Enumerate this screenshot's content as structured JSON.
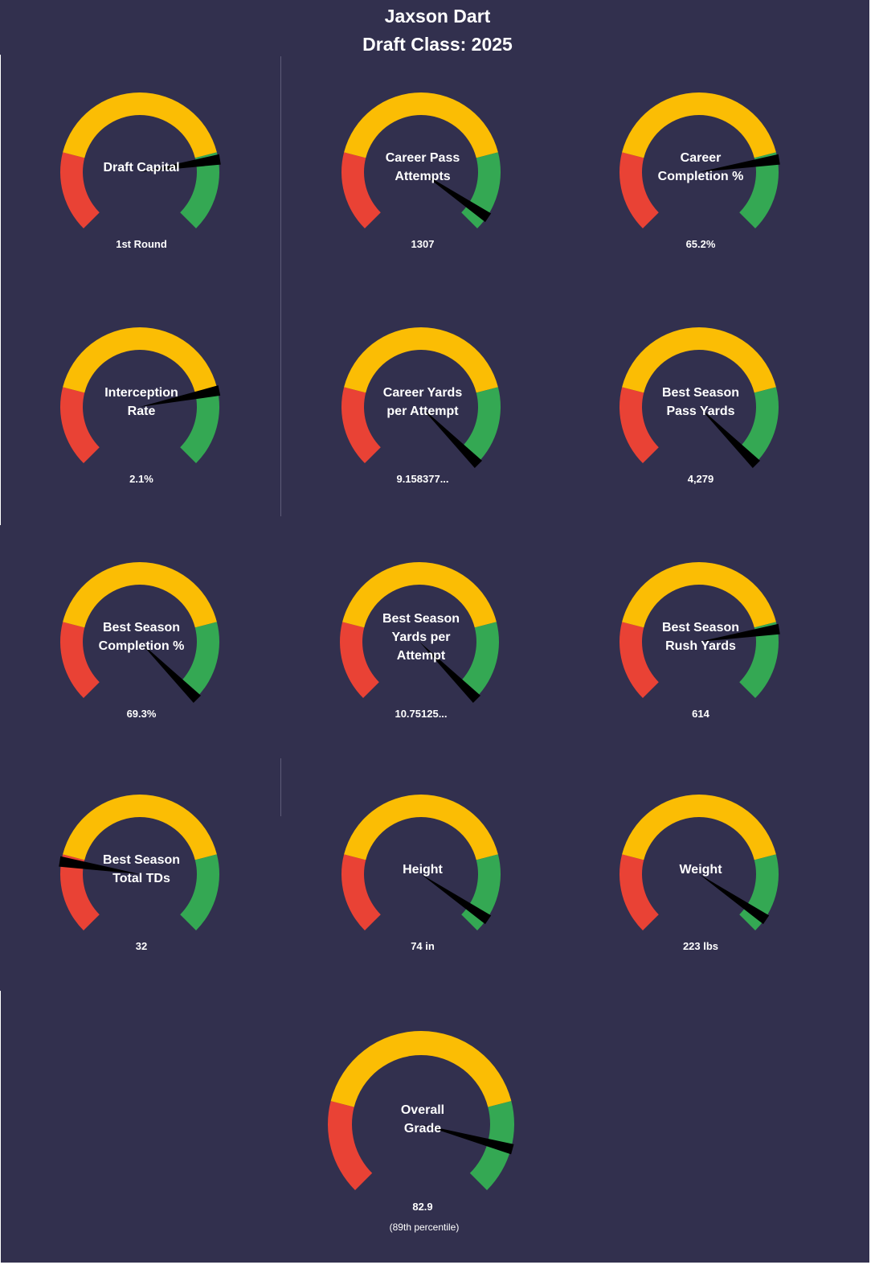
{
  "header": {
    "title": "Jaxson Dart",
    "subtitle": "Draft Class: 2025"
  },
  "colors": {
    "background": "#32304e",
    "low": "#e94235",
    "mid": "#fbbd04",
    "high": "#34a853",
    "needle": "#000000",
    "text": "#ffffff"
  },
  "chart_data": [
    {
      "type": "gauge",
      "name": "draft-capital",
      "label": [
        "Draft Capital"
      ],
      "display_value": "1st Round",
      "needle_percentile": 80
    },
    {
      "type": "gauge",
      "name": "career-pass-attempts",
      "label": [
        "Career Pass",
        "Attempts"
      ],
      "display_value": "1307",
      "needle_percentile": 96
    },
    {
      "type": "gauge",
      "name": "career-completion-pct",
      "label": [
        "Career",
        "Completion %"
      ],
      "display_value": "65.2%",
      "needle_percentile": 80
    },
    {
      "type": "gauge",
      "name": "interception-rate",
      "label": [
        "Interception",
        "Rate"
      ],
      "display_value": "2.1%",
      "needle_percentile": 79
    },
    {
      "type": "gauge",
      "name": "career-yards-per-attempt",
      "label": [
        "Career Yards",
        "per Attempt"
      ],
      "display_value": "9.158377...",
      "needle_percentile": 100
    },
    {
      "type": "gauge",
      "name": "best-season-pass-yards",
      "label": [
        "Best Season",
        "Pass Yards"
      ],
      "display_value": "4,279",
      "needle_percentile": 100
    },
    {
      "type": "gauge",
      "name": "best-season-completion-pct",
      "label": [
        "Best Season",
        "Completion %"
      ],
      "display_value": "69.3%",
      "needle_percentile": 100
    },
    {
      "type": "gauge",
      "name": "best-season-yards-per-attempt",
      "label": [
        "Best Season",
        "Yards per",
        "Attempt"
      ],
      "display_value": "10.75125...",
      "needle_percentile": 100
    },
    {
      "type": "gauge",
      "name": "best-season-rush-yards",
      "label": [
        "Best Season",
        "Rush Yards"
      ],
      "display_value": "614",
      "needle_percentile": 80
    },
    {
      "type": "gauge",
      "name": "best-season-total-tds",
      "label": [
        "Best Season",
        "Total TDs"
      ],
      "display_value": "32",
      "needle_percentile": 20
    },
    {
      "type": "gauge",
      "name": "height",
      "label": [
        "Height"
      ],
      "display_value": "74 in",
      "needle_percentile": 96
    },
    {
      "type": "gauge",
      "name": "weight",
      "label": [
        "Weight"
      ],
      "display_value": "223 lbs",
      "needle_percentile": 96
    },
    {
      "type": "gauge",
      "name": "overall-grade",
      "label": [
        "Overall",
        "Grade"
      ],
      "display_value": "82.9",
      "sub_value": "(89th  percentile)",
      "needle_percentile": 89
    }
  ]
}
